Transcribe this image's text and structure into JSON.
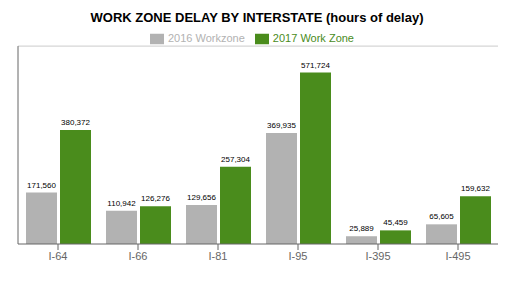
{
  "chart_data": {
    "type": "bar",
    "title": "WORK ZONE DELAY BY INTERSTATE (hours of delay)",
    "categories": [
      "I-64",
      "I-66",
      "I-81",
      "I-95",
      "I-395",
      "I-495"
    ],
    "series": [
      {
        "name": "2016 Workzone",
        "color": "#b2b2b2",
        "values": [
          171560,
          110942,
          129656,
          369935,
          25889,
          65605
        ],
        "value_labels": [
          "171,560",
          "110,942",
          "129,656",
          "369,935",
          "25,889",
          "65,605"
        ]
      },
      {
        "name": "2017 Work Zone",
        "color": "#4a8c1c",
        "values": [
          380372,
          126276,
          257304,
          571724,
          45459,
          159632
        ],
        "value_labels": [
          "380,372",
          "126,276",
          "257,304",
          "571,724",
          "45,459",
          "159,632"
        ]
      }
    ],
    "ylim": [
      0,
      660000
    ],
    "data_labels": true,
    "legend": "top",
    "grid": false,
    "tick_labels": "x"
  }
}
